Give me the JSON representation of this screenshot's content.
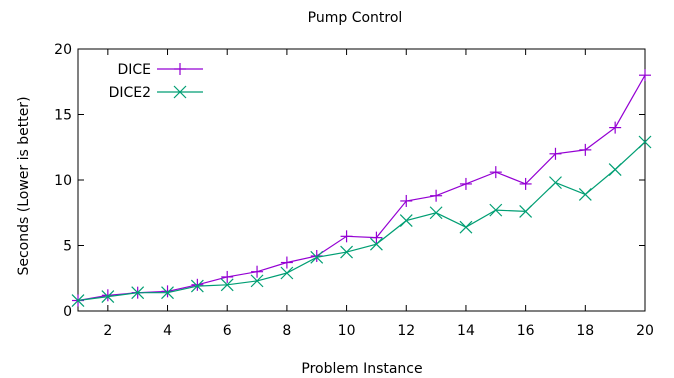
{
  "chart_data": {
    "type": "line",
    "title": "Pump Control",
    "xlabel": "Problem Instance",
    "ylabel": "Seconds (Lower is better)",
    "xlim": [
      1,
      20
    ],
    "ylim": [
      0,
      20
    ],
    "xticks": [
      2,
      4,
      6,
      8,
      10,
      12,
      14,
      16,
      18,
      20
    ],
    "yticks": [
      0,
      5,
      10,
      15,
      20
    ],
    "grid": false,
    "legend_position": "top-left",
    "x": [
      1,
      2,
      3,
      4,
      5,
      6,
      7,
      8,
      9,
      10,
      11,
      12,
      13,
      14,
      15,
      16,
      17,
      18,
      19,
      20
    ],
    "series": [
      {
        "name": "DICE",
        "color": "#9400d3",
        "marker": "plus",
        "values": [
          0.8,
          1.2,
          1.4,
          1.5,
          2.0,
          2.6,
          3.0,
          3.7,
          4.2,
          5.7,
          5.6,
          8.4,
          8.8,
          9.7,
          10.6,
          9.7,
          12.0,
          12.3,
          14.0,
          18.0
        ]
      },
      {
        "name": "DICE2",
        "color": "#009e73",
        "marker": "x",
        "values": [
          0.8,
          1.1,
          1.4,
          1.4,
          1.9,
          2.0,
          2.3,
          2.9,
          4.1,
          4.5,
          5.1,
          6.9,
          7.5,
          6.4,
          7.7,
          7.6,
          9.8,
          8.9,
          10.8,
          12.9
        ]
      }
    ]
  }
}
